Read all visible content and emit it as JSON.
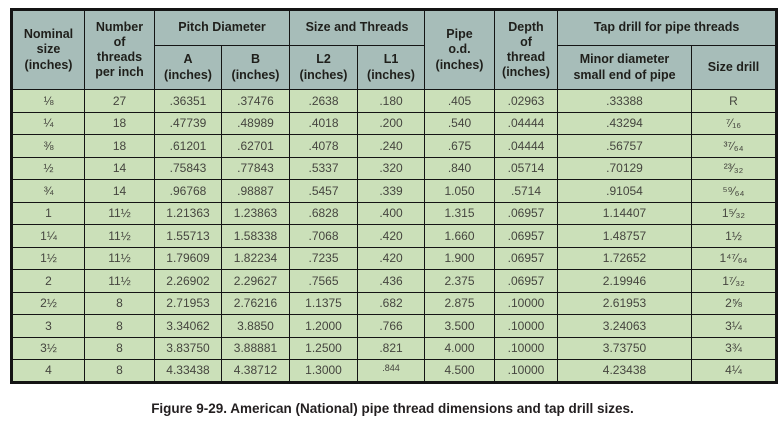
{
  "figure": {
    "caption": "Figure 9-29. American (National) pipe thread dimensions and tap drill sizes."
  },
  "colors": {
    "header_bg": "#a7bdb9",
    "row_bg": "#cbe0b9",
    "border": "#141414",
    "text": "#45453f"
  },
  "table": {
    "group_headers": {
      "pitch_diameter": "Pitch Diameter",
      "size_and_threads": "Size and Threads",
      "tap_drill": "Tap drill for pipe threads"
    },
    "headers": {
      "nominal_size": "Nominal\nsize\n(inches)",
      "threads_per_inch": "Number\nof\nthreads\nper inch",
      "a": "A\n(inches)",
      "b": "B\n(inches)",
      "l2": "L2\n(inches)",
      "l1": "L1\n(inches)",
      "pipe_od": "Pipe\no.d.\n(inches)",
      "depth_of_thread": "Depth\nof\nthread\n(inches)",
      "minor_diameter": "Minor diameter\nsmall end of pipe",
      "size_drill": "Size drill"
    },
    "column_names": [
      "cell-nominal-size",
      "cell-threads-per-inch",
      "cell-pitch-a",
      "cell-pitch-b",
      "cell-l2",
      "cell-l1",
      "cell-pipe-od",
      "cell-depth-of-thread",
      "cell-minor-diameter",
      "cell-size-drill"
    ],
    "rows": [
      [
        "⅛",
        "27",
        ".36351",
        ".37476",
        ".2638",
        ".180",
        ".405",
        ".02963",
        ".33388",
        "R"
      ],
      [
        "¼",
        "18",
        ".47739",
        ".48989",
        ".4018",
        ".200",
        ".540",
        ".04444",
        ".43294",
        "⁷⁄₁₆"
      ],
      [
        "⅜",
        "18",
        ".61201",
        ".62701",
        ".4078",
        ".240",
        ".675",
        ".04444",
        ".56757",
        "³⁷⁄₆₄"
      ],
      [
        "½",
        "14",
        ".75843",
        ".77843",
        ".5337",
        ".320",
        ".840",
        ".05714",
        ".70129",
        "²³⁄₃₂"
      ],
      [
        "¾",
        "14",
        ".96768",
        ".98887",
        ".5457",
        ".339",
        "1.050",
        ".5714",
        ".91054",
        "⁵⁹⁄₆₄"
      ],
      [
        "1",
        "11½",
        "1.21363",
        "1.23863",
        ".6828",
        ".400",
        "1.315",
        ".06957",
        "1.14407",
        "1⁵⁄₃₂"
      ],
      [
        "1¼",
        "11½",
        "1.55713",
        "1.58338",
        ".7068",
        ".420",
        "1.660",
        ".06957",
        "1.48757",
        "1½"
      ],
      [
        "1½",
        "11½",
        "1.79609",
        "1.82234",
        ".7235",
        ".420",
        "1.900",
        ".06957",
        "1.72652",
        "1⁴⁷⁄₆₄"
      ],
      [
        "2",
        "11½",
        "2.26902",
        "2.29627",
        ".7565",
        ".436",
        "2.375",
        ".06957",
        "2.19946",
        "1⁷⁄₃₂"
      ],
      [
        "2½",
        "8",
        "2.71953",
        "2.76216",
        "1.1375",
        ".682",
        "2.875",
        ".10000",
        "2.61953",
        "2⅝"
      ],
      [
        "3",
        "8",
        "3.34062",
        "3.8850",
        "1.2000",
        ".766",
        "3.500",
        ".10000",
        "3.24063",
        "3¼"
      ],
      [
        "3½",
        "8",
        "3.83750",
        "3.88881",
        "1.2500",
        ".821",
        "4.000",
        ".10000",
        "3.73750",
        "3¾"
      ],
      [
        "4",
        "8",
        "4.33438",
        "4.38712",
        "1.3000",
        {
          "text": ".844",
          "style": "sup-small"
        },
        "4.500",
        ".10000",
        "4.23438",
        "4¼"
      ]
    ]
  }
}
